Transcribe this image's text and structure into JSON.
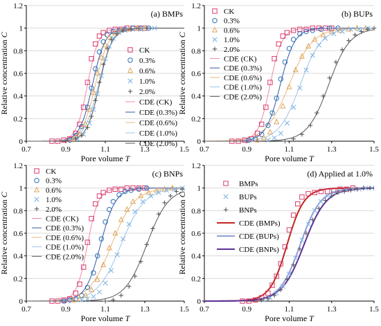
{
  "figure": {
    "series_styles": {
      "CK": {
        "color": "#d83a6a",
        "marker": "square"
      },
      "0.3%": {
        "color": "#2a6db5",
        "marker": "circle"
      },
      "0.6%": {
        "color": "#e0a458",
        "marker": "triangle"
      },
      "1.0%": {
        "color": "#84b6e3",
        "marker": "x"
      },
      "2.0%": {
        "color": "#5a5a5a",
        "marker": "plus"
      },
      "BMPs": {
        "color": "#d83a6a",
        "marker": "square"
      },
      "BUPs": {
        "color": "#84b6e3",
        "marker": "x"
      },
      "BNPs": {
        "color": "#5a5a5a",
        "marker": "plus"
      }
    },
    "fit_styles": {
      "CK": {
        "color": "#ef8aa5",
        "width": 1
      },
      "0.3%": {
        "color": "#2e5aa8",
        "width": 1
      },
      "0.6%": {
        "color": "#e8b87c",
        "width": 1
      },
      "1.0%": {
        "color": "#9ac4ec",
        "width": 1
      },
      "2.0%": {
        "color": "#555555",
        "width": 1
      },
      "BMPs": {
        "color": "#c0261c",
        "width": 2
      },
      "BUPs": {
        "color": "#8f9fd8",
        "width": 2
      },
      "BNPs": {
        "color": "#5b2f95",
        "width": 2
      }
    }
  },
  "chart_data": [
    {
      "id": "a",
      "type": "scatter",
      "panel_label": "(a) BMPs",
      "xlabel": "Pore volume T",
      "ylabel": "Relative concentration C",
      "xlim": [
        0.7,
        1.5
      ],
      "ylim": [
        0,
        1.2
      ],
      "xticks": [
        "0.7",
        "0.9",
        "1.1",
        "1.3",
        "1.5"
      ],
      "yticks": [
        "0",
        "0.2",
        "0.4",
        "0.6",
        "0.8",
        "1",
        "1.2"
      ],
      "legend_position": "right",
      "series": [
        {
          "name": "CK",
          "x": [
            0.83,
            0.86,
            0.89,
            0.92,
            0.95,
            0.97,
            0.99,
            1.01,
            1.03,
            1.05,
            1.07,
            1.09,
            1.12,
            1.15,
            1.18,
            1.21,
            1.24,
            1.27,
            1.3
          ],
          "y": [
            0,
            0,
            0.01,
            0.02,
            0.07,
            0.15,
            0.3,
            0.52,
            0.73,
            0.86,
            0.93,
            0.96,
            0.98,
            0.99,
            0.99,
            1,
            1,
            1,
            1
          ]
        },
        {
          "name": "0.3%",
          "x": [
            0.92,
            0.95,
            0.98,
            1.01,
            1.03,
            1.05,
            1.07,
            1.09,
            1.11,
            1.14,
            1.17,
            1.2,
            1.24,
            1.28,
            1.32
          ],
          "y": [
            0.01,
            0.05,
            0.13,
            0.3,
            0.47,
            0.64,
            0.79,
            0.88,
            0.94,
            0.97,
            0.98,
            0.99,
            1,
            1,
            1
          ]
        },
        {
          "name": "0.6%",
          "x": [
            0.94,
            0.97,
            1,
            1.02,
            1.04,
            1.06,
            1.08,
            1.1,
            1.12,
            1.15,
            1.18,
            1.22,
            1.26,
            1.3
          ],
          "y": [
            0.02,
            0.06,
            0.15,
            0.28,
            0.43,
            0.6,
            0.74,
            0.85,
            0.92,
            0.96,
            0.98,
            0.99,
            1,
            1
          ]
        },
        {
          "name": "1.0%",
          "x": [
            0.96,
            0.99,
            1.02,
            1.04,
            1.06,
            1.08,
            1.1,
            1.12,
            1.14,
            1.17,
            1.2,
            1.24,
            1.28,
            1.32,
            1.35
          ],
          "y": [
            0.02,
            0.06,
            0.16,
            0.28,
            0.42,
            0.58,
            0.73,
            0.84,
            0.91,
            0.96,
            0.98,
            0.99,
            0.99,
            1,
            1
          ]
        },
        {
          "name": "2.0%",
          "x": [
            0.95,
            0.98,
            1.01,
            1.03,
            1.05,
            1.07,
            1.09,
            1.11,
            1.13,
            1.16,
            1.19,
            1.23,
            1.27,
            1.31
          ],
          "y": [
            0.02,
            0.05,
            0.12,
            0.22,
            0.36,
            0.52,
            0.68,
            0.82,
            0.9,
            0.95,
            0.98,
            0.99,
            1,
            1
          ]
        }
      ],
      "fits": [
        {
          "name": "CDE (CK)",
          "key": "CK",
          "x0": 1.01,
          "w": 0.028
        },
        {
          "name": "CDE (0.3%)",
          "key": "0.3%",
          "x0": 1.035,
          "w": 0.032
        },
        {
          "name": "CDE (0.6%)",
          "key": "0.6%",
          "x0": 1.05,
          "w": 0.034
        },
        {
          "name": "CDE (1.0%)",
          "key": "1.0%",
          "x0": 1.065,
          "w": 0.036
        },
        {
          "name": "CDE (2.0%)",
          "key": "2.0%",
          "x0": 1.07,
          "w": 0.032
        }
      ]
    },
    {
      "id": "b",
      "type": "scatter",
      "panel_label": "(b) BUPs",
      "xlabel": "Pore volume T",
      "ylabel": "Relative concentration C",
      "xlim": [
        0.7,
        1.5
      ],
      "ylim": [
        0,
        1.2
      ],
      "xticks": [
        "0.7",
        "0.9",
        "1.1",
        "1.3",
        "1.5"
      ],
      "yticks": [
        "0",
        "0.2",
        "0.4",
        "0.6",
        "0.8",
        "1",
        "1.2"
      ],
      "legend_position": "top-left",
      "series": [
        {
          "name": "CK",
          "x": [
            0.83,
            0.86,
            0.89,
            0.92,
            0.95,
            0.97,
            0.99,
            1.01,
            1.03,
            1.05,
            1.07,
            1.09,
            1.12,
            1.15,
            1.18,
            1.21,
            1.24,
            1.27,
            1.3
          ],
          "y": [
            0,
            0,
            0.01,
            0.02,
            0.07,
            0.15,
            0.3,
            0.52,
            0.73,
            0.86,
            0.93,
            0.96,
            0.98,
            0.99,
            0.99,
            1,
            1,
            1,
            1
          ]
        },
        {
          "name": "0.3%",
          "x": [
            0.91,
            0.94,
            0.97,
            1,
            1.02,
            1.04,
            1.06,
            1.08,
            1.1,
            1.12,
            1.15,
            1.18,
            1.21,
            1.25,
            1.29,
            1.33
          ],
          "y": [
            0.01,
            0.02,
            0.06,
            0.14,
            0.25,
            0.38,
            0.55,
            0.7,
            0.82,
            0.9,
            0.95,
            0.97,
            0.98,
            0.99,
            1,
            1
          ]
        },
        {
          "name": "0.6%",
          "x": [
            0.95,
            0.98,
            1.01,
            1.04,
            1.07,
            1.1,
            1.13,
            1.16,
            1.19,
            1.22,
            1.26,
            1.3,
            1.34,
            1.38,
            1.42,
            1.46
          ],
          "y": [
            0.01,
            0.03,
            0.08,
            0.17,
            0.31,
            0.48,
            0.63,
            0.75,
            0.84,
            0.9,
            0.94,
            0.97,
            0.98,
            0.99,
            1,
            1
          ]
        },
        {
          "name": "1.0%",
          "x": [
            1,
            1.03,
            1.06,
            1.09,
            1.12,
            1.15,
            1.18,
            1.21,
            1.24,
            1.27,
            1.31,
            1.35,
            1.39,
            1.43,
            1.47
          ],
          "y": [
            0.01,
            0.03,
            0.07,
            0.16,
            0.3,
            0.47,
            0.63,
            0.76,
            0.85,
            0.91,
            0.95,
            0.97,
            0.99,
            0.99,
            1
          ]
        },
        {
          "name": "2.0%",
          "x": [
            1.08,
            1.12,
            1.16,
            1.2,
            1.23,
            1.26,
            1.29,
            1.32,
            1.35,
            1.38,
            1.41,
            1.44,
            1.47,
            1.5
          ],
          "y": [
            0,
            0.02,
            0.06,
            0.14,
            0.25,
            0.4,
            0.56,
            0.7,
            0.81,
            0.89,
            0.94,
            0.97,
            0.99,
            1
          ]
        }
      ],
      "fits": [
        {
          "name": "CDE (CK)",
          "key": "CK",
          "x0": 1.01,
          "w": 0.028
        },
        {
          "name": "CDE (0.3%)",
          "key": "0.3%",
          "x0": 1.058,
          "w": 0.034
        },
        {
          "name": "CDE (0.6%)",
          "key": "0.6%",
          "x0": 1.1,
          "w": 0.055
        },
        {
          "name": "CDE (1.0%)",
          "key": "1.0%",
          "x0": 1.152,
          "w": 0.05
        },
        {
          "name": "CDE (2.0%)",
          "key": "2.0%",
          "x0": 1.286,
          "w": 0.05
        }
      ]
    },
    {
      "id": "c",
      "type": "scatter",
      "panel_label": "(c) BNPs",
      "xlabel": "Pore volume T",
      "ylabel": "Relative concentration C",
      "xlim": [
        0.7,
        1.5
      ],
      "ylim": [
        0,
        1.2
      ],
      "xticks": [
        "0.7",
        "0.9",
        "1.1",
        "1.3",
        "1.5"
      ],
      "yticks": [
        "0",
        "0.2",
        "0.4",
        "0.6",
        "0.8",
        "1",
        "1.2"
      ],
      "legend_position": "top-left",
      "series": [
        {
          "name": "CK",
          "x": [
            0.83,
            0.86,
            0.89,
            0.92,
            0.95,
            0.97,
            0.99,
            1.01,
            1.03,
            1.05,
            1.07,
            1.09,
            1.12,
            1.15,
            1.18,
            1.21,
            1.24,
            1.27,
            1.3
          ],
          "y": [
            0,
            0,
            0.01,
            0.02,
            0.07,
            0.15,
            0.3,
            0.52,
            0.73,
            0.86,
            0.93,
            0.96,
            0.98,
            0.99,
            0.99,
            1,
            1,
            1,
            1
          ]
        },
        {
          "name": "0.3%",
          "x": [
            0.89,
            0.92,
            0.95,
            0.98,
            1.01,
            1.04,
            1.06,
            1.08,
            1.1,
            1.12,
            1.14,
            1.17,
            1.2,
            1.23,
            1.27,
            1.31
          ],
          "y": [
            0,
            0.01,
            0.02,
            0.05,
            0.12,
            0.25,
            0.4,
            0.55,
            0.7,
            0.81,
            0.88,
            0.94,
            0.97,
            0.98,
            0.99,
            1
          ]
        },
        {
          "name": "0.6%",
          "x": [
            0.94,
            0.97,
            1,
            1.03,
            1.06,
            1.09,
            1.12,
            1.15,
            1.18,
            1.21,
            1.24,
            1.28,
            1.32,
            1.36,
            1.4,
            1.44
          ],
          "y": [
            0.01,
            0.02,
            0.05,
            0.1,
            0.19,
            0.32,
            0.47,
            0.6,
            0.72,
            0.81,
            0.88,
            0.93,
            0.96,
            0.98,
            0.99,
            1
          ]
        },
        {
          "name": "1.0%",
          "x": [
            0.98,
            1.01,
            1.04,
            1.07,
            1.1,
            1.13,
            1.16,
            1.19,
            1.22,
            1.25,
            1.29,
            1.33,
            1.37,
            1.41,
            1.45,
            1.49
          ],
          "y": [
            0.01,
            0.02,
            0.04,
            0.08,
            0.16,
            0.27,
            0.41,
            0.55,
            0.68,
            0.79,
            0.88,
            0.93,
            0.96,
            0.98,
            0.99,
            1
          ]
        },
        {
          "name": "2.0%",
          "x": [
            1.1,
            1.14,
            1.18,
            1.22,
            1.25,
            1.28,
            1.31,
            1.34,
            1.37,
            1.4,
            1.43,
            1.46,
            1.49
          ],
          "y": [
            0,
            0.01,
            0.05,
            0.13,
            0.22,
            0.35,
            0.5,
            0.64,
            0.77,
            0.87,
            0.93,
            0.97,
            0.99
          ]
        }
      ],
      "fits": [
        {
          "name": "CDE (CK)",
          "key": "CK",
          "x0": 1.01,
          "w": 0.028
        },
        {
          "name": "CDE (0.3%)",
          "key": "0.3%",
          "x0": 1.076,
          "w": 0.038
        },
        {
          "name": "CDE (0.6%)",
          "key": "0.6%",
          "x0": 1.132,
          "w": 0.058
        },
        {
          "name": "CDE (1.0%)",
          "key": "1.0%",
          "x0": 1.18,
          "w": 0.06
        },
        {
          "name": "CDE (2.0%)",
          "key": "2.0%",
          "x0": 1.31,
          "w": 0.055
        }
      ]
    },
    {
      "id": "d",
      "type": "scatter",
      "panel_label": "(d) Applied at 1.0%",
      "xlabel": "Pore volume T",
      "ylabel": "Relative concentration C",
      "xlim": [
        0.7,
        1.5
      ],
      "ylim": [
        0,
        1.2
      ],
      "xticks": [
        "0.7",
        "0.9",
        "1.1",
        "1.3",
        "1.5"
      ],
      "yticks": [
        "0",
        "0.2",
        "0.4",
        "0.6",
        "0.8",
        "1",
        "1.2"
      ],
      "legend_position": "top-left",
      "series": [
        {
          "name": "BMPs",
          "x": [
            0.88,
            0.91,
            0.94,
            0.97,
            1,
            1.02,
            1.04,
            1.06,
            1.08,
            1.1,
            1.12,
            1.14,
            1.16,
            1.19,
            1.22,
            1.25,
            1.28,
            1.31,
            1.34,
            1.37,
            1.4
          ],
          "y": [
            0,
            0,
            0.01,
            0.03,
            0.07,
            0.14,
            0.22,
            0.33,
            0.48,
            0.63,
            0.76,
            0.86,
            0.92,
            0.95,
            0.96,
            0.97,
            0.97,
            0.98,
            0.99,
            0.99,
            1
          ]
        },
        {
          "name": "BUPs",
          "x": [
            0.98,
            1.01,
            1.04,
            1.07,
            1.1,
            1.13,
            1.16,
            1.19,
            1.22,
            1.25,
            1.28,
            1.31,
            1.34,
            1.37,
            1.4,
            1.43,
            1.46,
            1.49
          ],
          "y": [
            0.01,
            0.03,
            0.07,
            0.13,
            0.24,
            0.38,
            0.54,
            0.68,
            0.8,
            0.88,
            0.93,
            0.96,
            0.97,
            0.98,
            0.99,
            0.99,
            1,
            1
          ]
        },
        {
          "name": "BNPs",
          "x": [
            0.97,
            1,
            1.03,
            1.06,
            1.09,
            1.12,
            1.15,
            1.18,
            1.21,
            1.24,
            1.27,
            1.3,
            1.33,
            1.36,
            1.39,
            1.42,
            1.45,
            1.48
          ],
          "y": [
            0.01,
            0.02,
            0.05,
            0.1,
            0.19,
            0.32,
            0.46,
            0.6,
            0.72,
            0.82,
            0.89,
            0.93,
            0.96,
            0.97,
            0.98,
            0.99,
            1,
            1
          ]
        }
      ],
      "fits": [
        {
          "name": "CDE (BMPs)",
          "key": "BMPs",
          "x0": 1.09,
          "w": 0.04
        },
        {
          "name": "CDE (BUPs)",
          "key": "BUPs",
          "x0": 1.152,
          "w": 0.048
        },
        {
          "name": "CDE (BNPs)",
          "key": "BNPs",
          "x0": 1.17,
          "w": 0.052
        }
      ]
    }
  ]
}
